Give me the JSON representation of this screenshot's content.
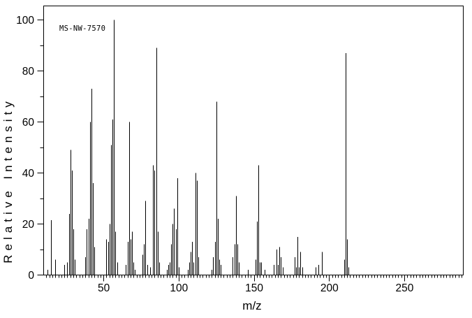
{
  "chart_data": {
    "type": "bar",
    "subtype": "mass-spectrum-stick-plot",
    "annotation": "MS-NW-7570",
    "xlabel": "m/z",
    "ylabel": "Relative Intensity",
    "xlim": [
      10,
      289
    ],
    "ylim": [
      0,
      105.5
    ],
    "grid": false,
    "background": "#ffffff",
    "series_color": "#000000",
    "x_major_ticks": [
      50,
      100,
      150,
      200,
      250
    ],
    "x_minor_tick_step": 2,
    "y_major_ticks": [
      0,
      20,
      40,
      60,
      80,
      100
    ],
    "y_minor_tick_step": 10,
    "peaks": [
      [
        13,
        2
      ],
      [
        15,
        21.5
      ],
      [
        18,
        6
      ],
      [
        24,
        4
      ],
      [
        26,
        5
      ],
      [
        27,
        24
      ],
      [
        28,
        49
      ],
      [
        29,
        41
      ],
      [
        30,
        18
      ],
      [
        31,
        6
      ],
      [
        38,
        7
      ],
      [
        39,
        18
      ],
      [
        40,
        22
      ],
      [
        41,
        60
      ],
      [
        42,
        73
      ],
      [
        43,
        36
      ],
      [
        44,
        11
      ],
      [
        52,
        14
      ],
      [
        53,
        13
      ],
      [
        54,
        20
      ],
      [
        55,
        51
      ],
      [
        56,
        61
      ],
      [
        57,
        100
      ],
      [
        58,
        17
      ],
      [
        59,
        5
      ],
      [
        65,
        4
      ],
      [
        66,
        13
      ],
      [
        67,
        60
      ],
      [
        68,
        14
      ],
      [
        69,
        17
      ],
      [
        70,
        5
      ],
      [
        71,
        2
      ],
      [
        76,
        8
      ],
      [
        77,
        12
      ],
      [
        78,
        29
      ],
      [
        79,
        4
      ],
      [
        81,
        3
      ],
      [
        83,
        43
      ],
      [
        84,
        41
      ],
      [
        85,
        89
      ],
      [
        86,
        17
      ],
      [
        87,
        5
      ],
      [
        92,
        2
      ],
      [
        93,
        4
      ],
      [
        94,
        5
      ],
      [
        95,
        12
      ],
      [
        96,
        20
      ],
      [
        97,
        26
      ],
      [
        98,
        18
      ],
      [
        99,
        38
      ],
      [
        100,
        3
      ],
      [
        106,
        2
      ],
      [
        107,
        5
      ],
      [
        108,
        9
      ],
      [
        109,
        13
      ],
      [
        110,
        5
      ],
      [
        111,
        40
      ],
      [
        112,
        37
      ],
      [
        113,
        7
      ],
      [
        122,
        2
      ],
      [
        123,
        7
      ],
      [
        124,
        13
      ],
      [
        125,
        68
      ],
      [
        126,
        22
      ],
      [
        127,
        6
      ],
      [
        128,
        4
      ],
      [
        136,
        7
      ],
      [
        137,
        12
      ],
      [
        138,
        31
      ],
      [
        139,
        12
      ],
      [
        140,
        5
      ],
      [
        146,
        2
      ],
      [
        151,
        6
      ],
      [
        152,
        21
      ],
      [
        153,
        43
      ],
      [
        154,
        5
      ],
      [
        155,
        5
      ],
      [
        157,
        2
      ],
      [
        163,
        4
      ],
      [
        165,
        10
      ],
      [
        166,
        4
      ],
      [
        167,
        11
      ],
      [
        168,
        7
      ],
      [
        169,
        3
      ],
      [
        177,
        7
      ],
      [
        178,
        3
      ],
      [
        179,
        15
      ],
      [
        180,
        3
      ],
      [
        181,
        9
      ],
      [
        182,
        3
      ],
      [
        191,
        3
      ],
      [
        193,
        4
      ],
      [
        195,
        9
      ],
      [
        210,
        6
      ],
      [
        211,
        87
      ],
      [
        212,
        14
      ],
      [
        213,
        3
      ]
    ]
  }
}
